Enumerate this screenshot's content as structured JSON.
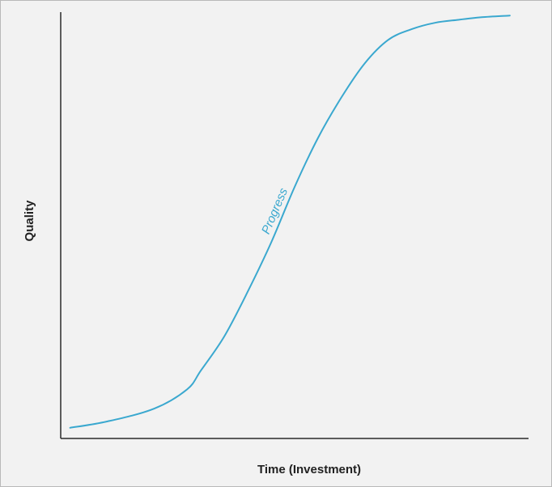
{
  "chart_data": {
    "type": "line",
    "xlabel": "Time (Investment)",
    "ylabel": "Quality",
    "xlim": [
      0,
      100
    ],
    "ylim": [
      0,
      100
    ],
    "grid": false,
    "annotations": [
      {
        "text": "Progress",
        "x": 46.5,
        "y": 53
      }
    ],
    "series": [
      {
        "x": [
          2,
          10,
          20,
          27,
          30,
          35,
          40,
          45,
          50,
          55,
          60,
          65,
          70,
          75,
          80,
          85,
          90,
          96
        ],
        "values": [
          2.5,
          4,
          7,
          11.5,
          16,
          24,
          34.5,
          46,
          59,
          70.5,
          80,
          88,
          93.5,
          96,
          97.5,
          98.2,
          98.8,
          99.2
        ]
      }
    ],
    "colors": {
      "line": "#3aa8cf",
      "axis": "#2a2a2a",
      "background": "#f2f2f2"
    }
  }
}
